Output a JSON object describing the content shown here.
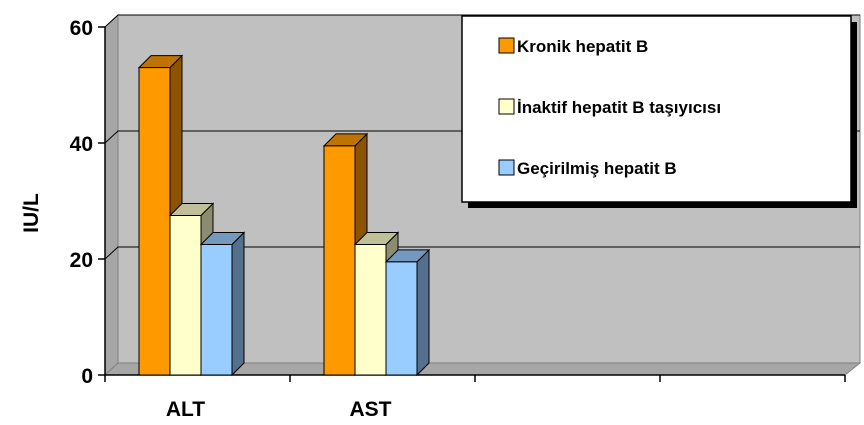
{
  "chart_data": {
    "type": "bar",
    "title": "",
    "xlabel": "",
    "ylabel": "IU/L",
    "ylim": [
      0,
      60
    ],
    "yticks": [
      0,
      20,
      40,
      60
    ],
    "grid": true,
    "legend_position": "top-right",
    "categories": [
      "ALT",
      "AST",
      "",
      ""
    ],
    "series": [
      {
        "name": "Kronik hepatit B",
        "values": [
          53,
          39.5,
          null,
          null
        ],
        "color": "#ff9900"
      },
      {
        "name": "İnaktif hepatit B taşıyıcısı",
        "values": [
          27.5,
          22.5,
          null,
          null
        ],
        "color": "#ffffcc"
      },
      {
        "name": "Geçirilmiş hepatit B",
        "values": [
          22.5,
          19.5,
          null,
          null
        ],
        "color": "#99ccff"
      }
    ],
    "plot_background": "#c0c0c0"
  }
}
